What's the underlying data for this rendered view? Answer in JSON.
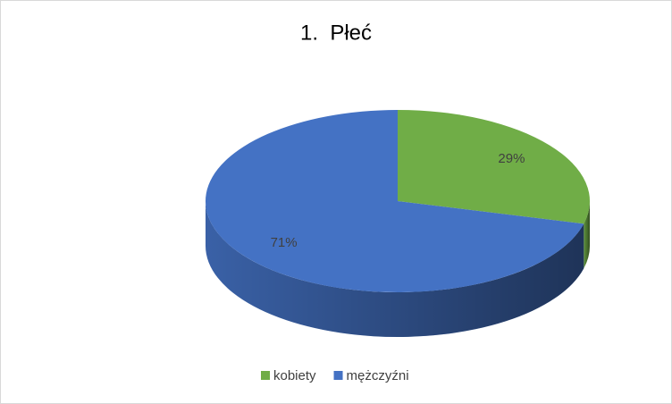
{
  "chart_data": {
    "type": "pie",
    "title": "1.  Płeć",
    "categories": [
      "kobiety",
      "mężczyźni"
    ],
    "values": [
      29,
      71
    ],
    "value_labels": [
      "29%",
      "71%"
    ],
    "colors": [
      "#70ad47",
      "#4472c4"
    ],
    "legend": "bottom"
  }
}
